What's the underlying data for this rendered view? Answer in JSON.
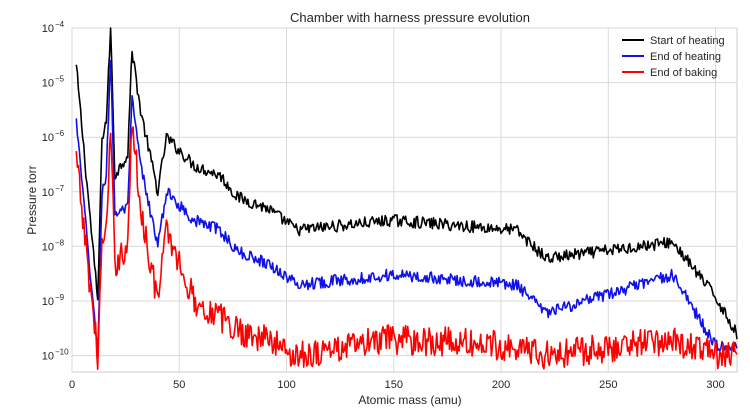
{
  "chart_data": {
    "type": "line",
    "title": "Chamber with harness pressure evolution",
    "xlabel": "Atomic mass (amu)",
    "ylabel": "Pressure torr",
    "xlim": [
      0,
      310
    ],
    "ylim": [
      5e-11,
      0.0001
    ],
    "yscale": "log",
    "grid": true,
    "legend_position": "top-right",
    "x_ticks": [
      0,
      50,
      100,
      150,
      200,
      250,
      300
    ],
    "y_tick_exponents": [
      -10,
      -9,
      -8,
      -7,
      -6,
      -5,
      -4
    ],
    "y_tick_base": "10",
    "x": [
      2,
      12,
      14,
      16,
      18,
      20,
      26,
      28,
      32,
      40,
      44,
      57,
      69,
      77,
      91,
      105,
      149,
      207,
      221,
      280,
      300,
      310
    ],
    "series": [
      {
        "name": "Start of heating",
        "color": "#000000",
        "values": [
          2e-05,
          1e-09,
          1e-06,
          2e-06,
          0.0001,
          2e-07,
          5e-07,
          4e-05,
          3e-06,
          1e-07,
          1e-06,
          3e-07,
          2e-07,
          8e-08,
          5e-08,
          2e-08,
          3e-08,
          2e-08,
          6e-09,
          1.2e-08,
          1.2e-09,
          2.5e-10
        ]
      },
      {
        "name": "End of heating",
        "color": "#1010e8",
        "values": [
          2e-06,
          1e-10,
          1e-07,
          2e-07,
          3e-05,
          4e-08,
          5e-08,
          5e-06,
          3e-07,
          1e-08,
          1e-07,
          3e-08,
          2e-08,
          8e-09,
          5e-09,
          2e-09,
          3e-09,
          2e-09,
          6e-10,
          3e-09,
          1.5e-10,
          1.5e-10
        ]
      },
      {
        "name": "End of baking",
        "color": "#ff0000",
        "values": [
          4e-07,
          1e-10,
          1e-08,
          2e-08,
          1e-06,
          5e-09,
          1e-08,
          2e-06,
          5e-08,
          1e-09,
          2e-08,
          1e-09,
          5e-10,
          3e-10,
          2e-10,
          1e-10,
          2e-10,
          1.5e-10,
          1e-10,
          2e-10,
          1e-10,
          1e-10
        ]
      }
    ]
  }
}
